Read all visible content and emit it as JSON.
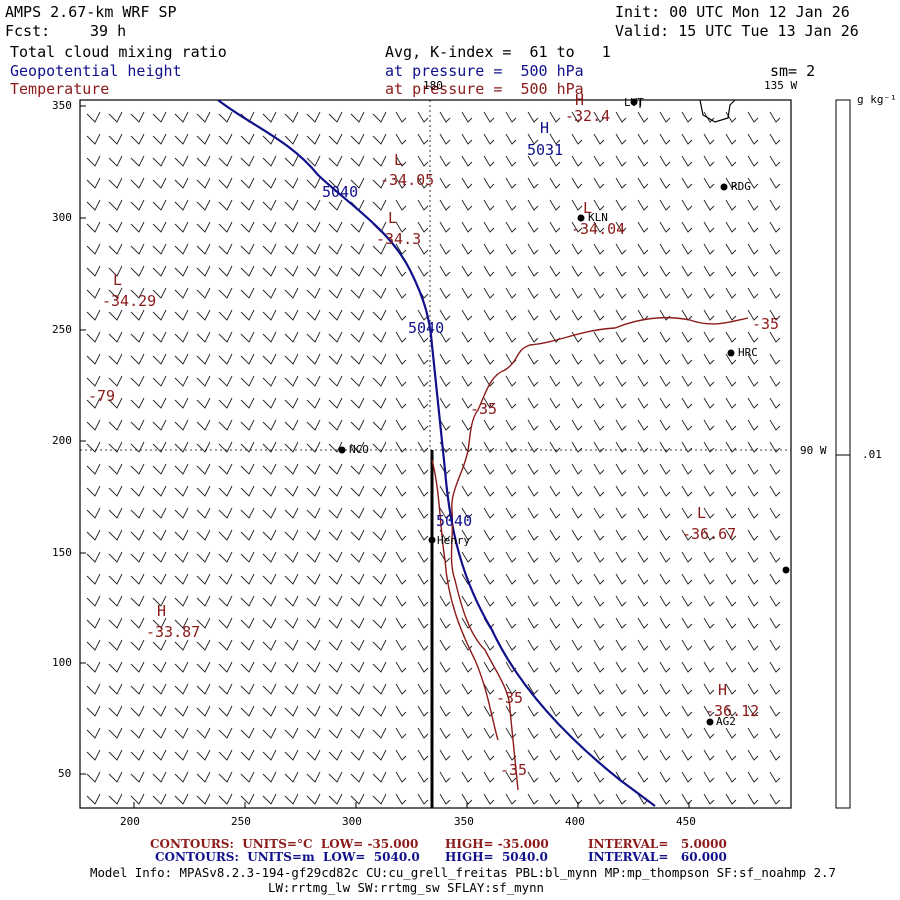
{
  "header": {
    "title": "AMPS 2.67-km WRF SP",
    "fcst_label": "Fcst:",
    "fcst_value": "39 h",
    "init": "Init: 00 UTC Mon 12 Jan 26",
    "valid": "Valid: 15 UTC Tue 13 Jan 26",
    "field1": "Total cloud mixing ratio",
    "field2": "Geopotential height",
    "field3": "Temperature",
    "avg": "Avg, K-index =  61 to   1",
    "pressure_blue": "at pressure =  500 hPa",
    "pressure_red": "at pressure =  500 hPa",
    "sm": "sm= 2"
  },
  "colorbar": {
    "unit": "g kg⁻¹",
    "value": ".01"
  },
  "map_labels": {
    "lon_180": "180",
    "lon_135w": "135 W",
    "lon_90w": "90 W",
    "x_ticks": [
      "200",
      "250",
      "300",
      "350",
      "400",
      "450"
    ],
    "y_ticks": [
      "350",
      "300",
      "250",
      "200",
      "150",
      "100",
      "50"
    ],
    "stations": [
      {
        "name": "LVT"
      },
      {
        "name": "RDG"
      },
      {
        "name": "KLN"
      },
      {
        "name": "HRC"
      },
      {
        "name": "NCO"
      },
      {
        "name": "Henry"
      },
      {
        "name": "AG2"
      },
      {
        "name": ""
      }
    ],
    "pressure_centers": [
      {
        "letter": "H",
        "value": "-32.4"
      },
      {
        "letter": "H",
        "value": "5031"
      },
      {
        "letter": "L",
        "value": "-34.05"
      },
      {
        "letter": "L",
        "value": "-34.3"
      },
      {
        "letter": "L",
        "value": "-34.04"
      },
      {
        "letter": "L",
        "value": "-34.29"
      },
      {
        "letter": "",
        "value": "-79"
      },
      {
        "letter": "L",
        "value": "-36.67"
      },
      {
        "letter": "H",
        "value": "-33.87"
      },
      {
        "letter": "H",
        "value": "-36.12"
      }
    ],
    "height_labels": [
      "5040",
      "5040",
      "5040"
    ],
    "temp_labels": [
      "-35",
      "-35",
      "-35",
      "-35"
    ]
  },
  "footer": {
    "line1_prefix": "CONTOURS:  UNITS=°C  LOW= -35.000",
    "line1_high": "HIGH= -35.000",
    "line1_int": "INTERVAL=   5.0000",
    "line2_prefix": "CONTOURS:  UNITS=m  LOW=  5040.0",
    "line2_high": "HIGH=  5040.0",
    "line2_int": "INTERVAL=   60.000",
    "model_info": "Model Info: MPASv8.2.3-194-gf29cd82c CU:cu_grell_freitas PBL:bl_mynn MP:mp_thompson SF:sf_noahmp 2.7",
    "model_info2": "LW:rrtmg_lw SW:rrtmg_sw SFLAY:sf_mynn"
  },
  "colors": {
    "height": "#10108a",
    "temperature": "#8b1a1a",
    "text": "#000000"
  }
}
